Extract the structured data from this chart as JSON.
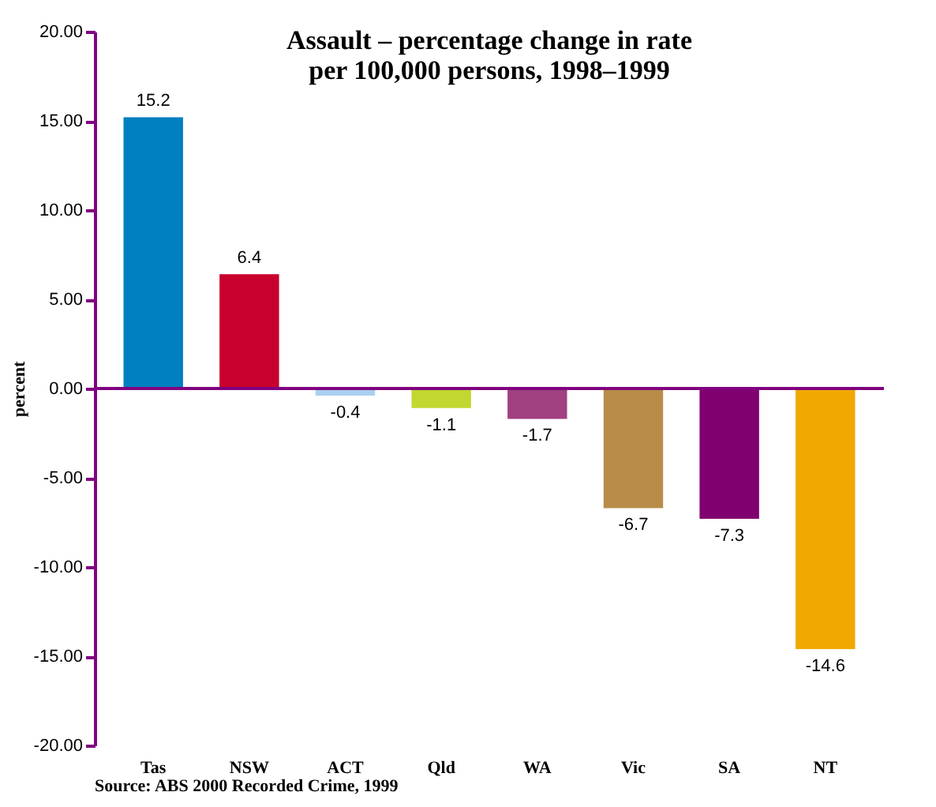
{
  "chart_data": {
    "type": "bar",
    "title": "Assault – percentage change in rate\nper 100,000 persons, 1998–1999",
    "ylabel": "percent",
    "categories": [
      "Tas",
      "NSW",
      "ACT",
      "Qld",
      "WA",
      "Vic",
      "SA",
      "NT"
    ],
    "values": [
      15.2,
      6.4,
      -0.4,
      -1.1,
      -1.7,
      -6.7,
      -7.3,
      -14.6
    ],
    "colors": [
      "#0080c0",
      "#c8002d",
      "#a8d0f0",
      "#c0d830",
      "#a04080",
      "#b88c48",
      "#800070",
      "#f0a800"
    ],
    "ylim": [
      -20,
      20
    ],
    "yticks": [
      {
        "value": -20,
        "label": "-20.00"
      },
      {
        "value": -15,
        "label": "-15.00"
      },
      {
        "value": -10,
        "label": "-10.00"
      },
      {
        "value": -5,
        "label": "-5.00"
      },
      {
        "value": 0,
        "label": "0.00"
      },
      {
        "value": 5,
        "label": "5.00"
      },
      {
        "value": 10,
        "label": "10.00"
      },
      {
        "value": 15,
        "label": "15.00"
      },
      {
        "value": 20,
        "label": "20.00"
      }
    ],
    "data_labels": true,
    "grid": false,
    "ref_lines": [
      {
        "axis": "y",
        "value": 0,
        "color": "#800080"
      }
    ],
    "annotations": [
      "Source: ABS 2000 Recorded Crime, 1999"
    ]
  }
}
